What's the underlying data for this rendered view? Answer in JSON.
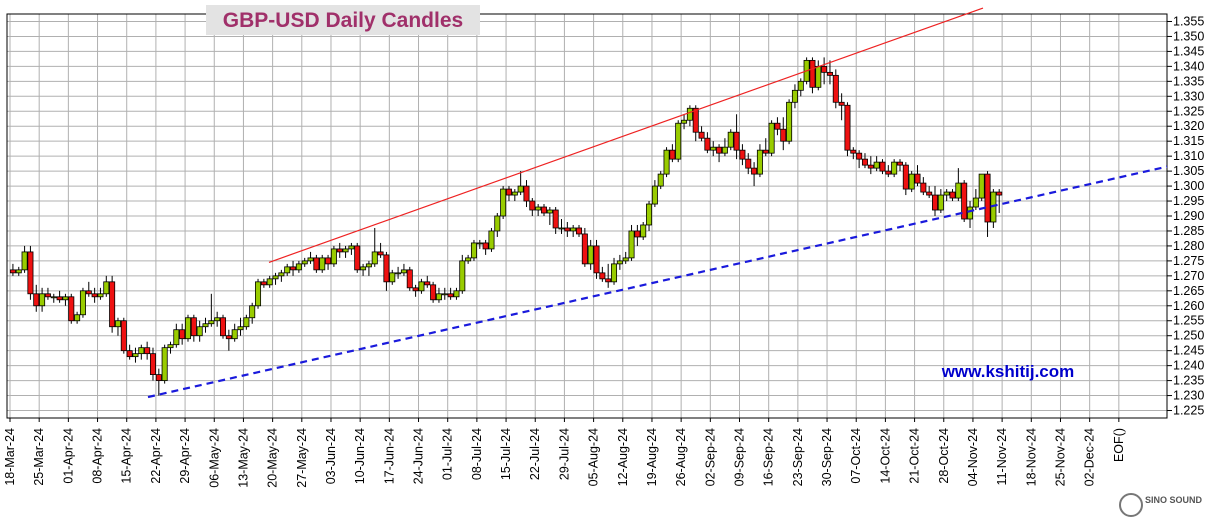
{
  "chart_data": {
    "type": "candlestick",
    "title": "GBP-USD Daily Candles",
    "watermark": "www.kshitij.com",
    "logo": "SINO SOUND",
    "y_ticks": [
      "1.355",
      "1.350",
      "1.345",
      "1.340",
      "1.335",
      "1.330",
      "1.325",
      "1.320",
      "1.315",
      "1.310",
      "1.305",
      "1.300",
      "1.295",
      "1.290",
      "1.285",
      "1.280",
      "1.275",
      "1.270",
      "1.265",
      "1.260",
      "1.255",
      "1.250",
      "1.245",
      "1.240",
      "1.235",
      "1.230",
      "1.225"
    ],
    "ylim": [
      1.2225,
      1.3575
    ],
    "x_ticks": [
      "18-Mar-24",
      "25-Mar-24",
      "01-Apr-24",
      "08-Apr-24",
      "15-Apr-24",
      "22-Apr-24",
      "29-Apr-24",
      "06-May-24",
      "13-May-24",
      "20-May-24",
      "27-May-24",
      "03-Jun-24",
      "10-Jun-24",
      "17-Jun-24",
      "24-Jun-24",
      "01-Jul-24",
      "08-Jul-24",
      "15-Jul-24",
      "22-Jul-24",
      "29-Jul-24",
      "05-Aug-24",
      "12-Aug-24",
      "19-Aug-24",
      "26-Aug-24",
      "02-Sep-24",
      "09-Sep-24",
      "16-Sep-24",
      "23-Sep-24",
      "30-Sep-24",
      "07-Oct-24",
      "14-Oct-24",
      "21-Oct-24",
      "28-Oct-24",
      "04-Nov-24",
      "11-Nov-24",
      "18-Nov-24",
      "25-Nov-24",
      "02-Dec-24",
      "EOF()"
    ],
    "colors": {
      "up": "#99cc00",
      "down": "#ee1111",
      "resistance": "#ee2222",
      "support": "#1a1adc",
      "grid": "#b0b0b0"
    },
    "trendlines": [
      {
        "style": "solid",
        "from": [
          "20-May-24",
          1.2745
        ],
        "to": [
          "27-Sep-24 (approx)",
          1.3595
        ]
      },
      {
        "style": "dashed",
        "from": [
          "17-Apr-24",
          1.2295
        ],
        "to": [
          "EOF()",
          1.3065
        ]
      }
    ],
    "candles": [
      [
        "18-Mar-24",
        1.272,
        1.274,
        1.27,
        1.271
      ],
      [
        "19-Mar-24",
        1.271,
        1.273,
        1.27,
        1.272
      ],
      [
        "20-Mar-24",
        1.272,
        1.28,
        1.271,
        1.278
      ],
      [
        "21-Mar-24",
        1.278,
        1.28,
        1.262,
        1.264
      ],
      [
        "22-Mar-24",
        1.264,
        1.267,
        1.258,
        1.26
      ],
      [
        "25-Mar-24",
        1.26,
        1.266,
        1.258,
        1.264
      ],
      [
        "26-Mar-24",
        1.264,
        1.266,
        1.262,
        1.263
      ],
      [
        "27-Mar-24",
        1.263,
        1.264,
        1.261,
        1.263
      ],
      [
        "28-Mar-24",
        1.263,
        1.265,
        1.261,
        1.262
      ],
      [
        "29-Mar-24",
        1.262,
        1.264,
        1.26,
        1.263
      ],
      [
        "01-Apr-24",
        1.263,
        1.264,
        1.254,
        1.255
      ],
      [
        "02-Apr-24",
        1.255,
        1.258,
        1.254,
        1.257
      ],
      [
        "03-Apr-24",
        1.257,
        1.266,
        1.256,
        1.265
      ],
      [
        "04-Apr-24",
        1.265,
        1.268,
        1.263,
        1.264
      ],
      [
        "05-Apr-24",
        1.264,
        1.266,
        1.261,
        1.263
      ],
      [
        "08-Apr-24",
        1.263,
        1.266,
        1.262,
        1.264
      ],
      [
        "09-Apr-24",
        1.264,
        1.27,
        1.263,
        1.268
      ],
      [
        "10-Apr-24",
        1.268,
        1.27,
        1.251,
        1.253
      ],
      [
        "11-Apr-24",
        1.253,
        1.256,
        1.25,
        1.255
      ],
      [
        "12-Apr-24",
        1.255,
        1.256,
        1.244,
        1.245
      ],
      [
        "15-Apr-24",
        1.245,
        1.247,
        1.242,
        1.243
      ],
      [
        "16-Apr-24",
        1.243,
        1.246,
        1.241,
        1.244
      ],
      [
        "17-Apr-24",
        1.244,
        1.247,
        1.242,
        1.246
      ],
      [
        "18-Apr-24",
        1.246,
        1.248,
        1.242,
        1.244
      ],
      [
        "19-Apr-24",
        1.244,
        1.246,
        1.235,
        1.237
      ],
      [
        "22-Apr-24",
        1.237,
        1.239,
        1.23,
        1.235
      ],
      [
        "23-Apr-24",
        1.235,
        1.247,
        1.234,
        1.246
      ],
      [
        "24-Apr-24",
        1.246,
        1.248,
        1.244,
        1.247
      ],
      [
        "25-Apr-24",
        1.247,
        1.254,
        1.246,
        1.252
      ],
      [
        "26-Apr-24",
        1.252,
        1.254,
        1.247,
        1.249
      ],
      [
        "29-Apr-24",
        1.249,
        1.257,
        1.248,
        1.256
      ],
      [
        "30-Apr-24",
        1.256,
        1.257,
        1.248,
        1.25
      ],
      [
        "01-May-24",
        1.25,
        1.255,
        1.248,
        1.253
      ],
      [
        "02-May-24",
        1.253,
        1.256,
        1.251,
        1.254
      ],
      [
        "03-May-24",
        1.254,
        1.264,
        1.253,
        1.255
      ],
      [
        "06-May-24",
        1.255,
        1.258,
        1.253,
        1.256
      ],
      [
        "07-May-24",
        1.256,
        1.257,
        1.249,
        1.25
      ],
      [
        "08-May-24",
        1.25,
        1.252,
        1.245,
        1.249
      ],
      [
        "09-May-24",
        1.249,
        1.254,
        1.248,
        1.252
      ],
      [
        "10-May-24",
        1.252,
        1.256,
        1.25,
        1.253
      ],
      [
        "13-May-24",
        1.253,
        1.257,
        1.252,
        1.256
      ],
      [
        "14-May-24",
        1.256,
        1.261,
        1.254,
        1.26
      ],
      [
        "15-May-24",
        1.26,
        1.269,
        1.259,
        1.268
      ],
      [
        "16-May-24",
        1.268,
        1.269,
        1.266,
        1.267
      ],
      [
        "17-May-24",
        1.267,
        1.27,
        1.266,
        1.269
      ],
      [
        "20-May-24",
        1.269,
        1.271,
        1.267,
        1.27
      ],
      [
        "21-May-24",
        1.27,
        1.272,
        1.268,
        1.271
      ],
      [
        "22-May-24",
        1.271,
        1.274,
        1.27,
        1.273
      ],
      [
        "23-May-24",
        1.273,
        1.275,
        1.27,
        1.272
      ],
      [
        "24-May-24",
        1.272,
        1.275,
        1.271,
        1.274
      ],
      [
        "27-May-24",
        1.274,
        1.276,
        1.273,
        1.275
      ],
      [
        "28-May-24",
        1.275,
        1.278,
        1.274,
        1.276
      ],
      [
        "29-May-24",
        1.276,
        1.277,
        1.271,
        1.272
      ],
      [
        "30-May-24",
        1.272,
        1.277,
        1.271,
        1.276
      ],
      [
        "31-May-24",
        1.276,
        1.277,
        1.272,
        1.274
      ],
      [
        "03-Jun-24",
        1.274,
        1.28,
        1.273,
        1.279
      ],
      [
        "04-Jun-24",
        1.279,
        1.281,
        1.276,
        1.278
      ],
      [
        "05-Jun-24",
        1.278,
        1.28,
        1.276,
        1.279
      ],
      [
        "06-Jun-24",
        1.279,
        1.281,
        1.277,
        1.28
      ],
      [
        "07-Jun-24",
        1.28,
        1.281,
        1.271,
        1.272
      ],
      [
        "10-Jun-24",
        1.272,
        1.274,
        1.27,
        1.273
      ],
      [
        "11-Jun-24",
        1.273,
        1.275,
        1.27,
        1.274
      ],
      [
        "12-Jun-24",
        1.274,
        1.286,
        1.273,
        1.278
      ],
      [
        "13-Jun-24",
        1.278,
        1.281,
        1.276,
        1.277
      ],
      [
        "14-Jun-24",
        1.277,
        1.278,
        1.265,
        1.268
      ],
      [
        "17-Jun-24",
        1.268,
        1.272,
        1.267,
        1.271
      ],
      [
        "18-Jun-24",
        1.271,
        1.273,
        1.269,
        1.271
      ],
      [
        "19-Jun-24",
        1.271,
        1.274,
        1.27,
        1.272
      ],
      [
        "20-Jun-24",
        1.272,
        1.273,
        1.265,
        1.266
      ],
      [
        "21-Jun-24",
        1.266,
        1.267,
        1.263,
        1.265
      ],
      [
        "24-Jun-24",
        1.265,
        1.269,
        1.264,
        1.268
      ],
      [
        "25-Jun-24",
        1.268,
        1.27,
        1.266,
        1.267
      ],
      [
        "26-Jun-24",
        1.267,
        1.268,
        1.261,
        1.262
      ],
      [
        "27-Jun-24",
        1.262,
        1.266,
        1.261,
        1.264
      ],
      [
        "28-Jun-24",
        1.264,
        1.266,
        1.262,
        1.264
      ],
      [
        "01-Jul-24",
        1.264,
        1.266,
        1.262,
        1.263
      ],
      [
        "02-Jul-24",
        1.263,
        1.266,
        1.262,
        1.265
      ],
      [
        "03-Jul-24",
        1.265,
        1.277,
        1.264,
        1.275
      ],
      [
        "04-Jul-24",
        1.275,
        1.277,
        1.274,
        1.276
      ],
      [
        "05-Jul-24",
        1.276,
        1.282,
        1.275,
        1.281
      ],
      [
        "08-Jul-24",
        1.281,
        1.282,
        1.279,
        1.281
      ],
      [
        "09-Jul-24",
        1.281,
        1.282,
        1.277,
        1.279
      ],
      [
        "10-Jul-24",
        1.279,
        1.286,
        1.278,
        1.285
      ],
      [
        "11-Jul-24",
        1.285,
        1.291,
        1.283,
        1.29
      ],
      [
        "12-Jul-24",
        1.29,
        1.3,
        1.289,
        1.299
      ],
      [
        "15-Jul-24",
        1.299,
        1.3,
        1.295,
        1.297
      ],
      [
        "16-Jul-24",
        1.297,
        1.299,
        1.295,
        1.298
      ],
      [
        "17-Jul-24",
        1.298,
        1.305,
        1.297,
        1.3
      ],
      [
        "18-Jul-24",
        1.3,
        1.302,
        1.293,
        1.295
      ],
      [
        "19-Jul-24",
        1.295,
        1.296,
        1.29,
        1.292
      ],
      [
        "22-Jul-24",
        1.292,
        1.294,
        1.29,
        1.293
      ],
      [
        "23-Jul-24",
        1.293,
        1.294,
        1.29,
        1.291
      ],
      [
        "24-Jul-24",
        1.291,
        1.293,
        1.287,
        1.292
      ],
      [
        "25-Jul-24",
        1.292,
        1.293,
        1.284,
        1.286
      ],
      [
        "26-Jul-24",
        1.286,
        1.289,
        1.284,
        1.286
      ],
      [
        "29-Jul-24",
        1.286,
        1.288,
        1.283,
        1.285
      ],
      [
        "30-Jul-24",
        1.285,
        1.287,
        1.283,
        1.286
      ],
      [
        "31-Jul-24",
        1.286,
        1.287,
        1.283,
        1.284
      ],
      [
        "01-Aug-24",
        1.284,
        1.286,
        1.273,
        1.274
      ],
      [
        "02-Aug-24",
        1.274,
        1.282,
        1.272,
        1.28
      ],
      [
        "05-Aug-24",
        1.28,
        1.282,
        1.269,
        1.271
      ],
      [
        "06-Aug-24",
        1.271,
        1.273,
        1.268,
        1.269
      ],
      [
        "07-Aug-24",
        1.269,
        1.274,
        1.266,
        1.268
      ],
      [
        "08-Aug-24",
        1.268,
        1.276,
        1.267,
        1.274
      ],
      [
        "09-Aug-24",
        1.274,
        1.277,
        1.272,
        1.275
      ],
      [
        "12-Aug-24",
        1.275,
        1.278,
        1.274,
        1.276
      ],
      [
        "13-Aug-24",
        1.276,
        1.287,
        1.275,
        1.285
      ],
      [
        "14-Aug-24",
        1.285,
        1.287,
        1.28,
        1.283
      ],
      [
        "15-Aug-24",
        1.283,
        1.288,
        1.282,
        1.287
      ],
      [
        "16-Aug-24",
        1.287,
        1.295,
        1.285,
        1.294
      ],
      [
        "19-Aug-24",
        1.294,
        1.302,
        1.293,
        1.3
      ],
      [
        "20-Aug-24",
        1.3,
        1.305,
        1.299,
        1.304
      ],
      [
        "21-Aug-24",
        1.304,
        1.313,
        1.303,
        1.312
      ],
      [
        "22-Aug-24",
        1.312,
        1.314,
        1.308,
        1.309
      ],
      [
        "23-Aug-24",
        1.309,
        1.322,
        1.308,
        1.321
      ],
      [
        "26-Aug-24",
        1.321,
        1.324,
        1.319,
        1.322
      ],
      [
        "27-Aug-24",
        1.322,
        1.327,
        1.32,
        1.326
      ],
      [
        "28-Aug-24",
        1.326,
        1.327,
        1.315,
        1.318
      ],
      [
        "29-Aug-24",
        1.318,
        1.32,
        1.315,
        1.316
      ],
      [
        "30-Aug-24",
        1.316,
        1.318,
        1.311,
        1.312
      ],
      [
        "02-Sep-24",
        1.312,
        1.315,
        1.31,
        1.313
      ],
      [
        "03-Sep-24",
        1.313,
        1.314,
        1.308,
        1.311
      ],
      [
        "04-Sep-24",
        1.311,
        1.316,
        1.31,
        1.313
      ],
      [
        "05-Sep-24",
        1.313,
        1.319,
        1.312,
        1.318
      ],
      [
        "06-Sep-24",
        1.318,
        1.324,
        1.309,
        1.312
      ],
      [
        "09-Sep-24",
        1.312,
        1.314,
        1.307,
        1.309
      ],
      [
        "10-Sep-24",
        1.309,
        1.311,
        1.304,
        1.306
      ],
      [
        "11-Sep-24",
        1.306,
        1.308,
        1.3,
        1.304
      ],
      [
        "12-Sep-24",
        1.304,
        1.314,
        1.303,
        1.312
      ],
      [
        "13-Sep-24",
        1.312,
        1.316,
        1.31,
        1.311
      ],
      [
        "16-Sep-24",
        1.311,
        1.322,
        1.31,
        1.321
      ],
      [
        "17-Sep-24",
        1.321,
        1.323,
        1.317,
        1.319
      ],
      [
        "18-Sep-24",
        1.319,
        1.323,
        1.312,
        1.315
      ],
      [
        "19-Sep-24",
        1.315,
        1.329,
        1.314,
        1.328
      ],
      [
        "20-Sep-24",
        1.328,
        1.334,
        1.326,
        1.332
      ],
      [
        "23-Sep-24",
        1.332,
        1.336,
        1.33,
        1.335
      ],
      [
        "24-Sep-24",
        1.335,
        1.343,
        1.334,
        1.342
      ],
      [
        "25-Sep-24",
        1.342,
        1.343,
        1.331,
        1.333
      ],
      [
        "26-Sep-24",
        1.333,
        1.342,
        1.332,
        1.34
      ],
      [
        "27-Sep-24",
        1.34,
        1.343,
        1.334,
        1.338
      ],
      [
        "30-Sep-24",
        1.338,
        1.342,
        1.334,
        1.337
      ],
      [
        "01-Oct-24",
        1.337,
        1.339,
        1.326,
        1.328
      ],
      [
        "02-Oct-24",
        1.328,
        1.331,
        1.322,
        1.327
      ],
      [
        "03-Oct-24",
        1.327,
        1.328,
        1.31,
        1.312
      ],
      [
        "04-Oct-24",
        1.312,
        1.313,
        1.309,
        1.311
      ],
      [
        "07-Oct-24",
        1.311,
        1.312,
        1.306,
        1.309
      ],
      [
        "08-Oct-24",
        1.309,
        1.311,
        1.306,
        1.307
      ],
      [
        "09-Oct-24",
        1.307,
        1.31,
        1.304,
        1.306
      ],
      [
        "10-Oct-24",
        1.306,
        1.31,
        1.305,
        1.308
      ],
      [
        "11-Oct-24",
        1.308,
        1.309,
        1.304,
        1.305
      ],
      [
        "14-Oct-24",
        1.305,
        1.307,
        1.303,
        1.304
      ],
      [
        "15-Oct-24",
        1.304,
        1.309,
        1.303,
        1.308
      ],
      [
        "16-Oct-24",
        1.308,
        1.309,
        1.305,
        1.307
      ],
      [
        "17-Oct-24",
        1.307,
        1.308,
        1.297,
        1.299
      ],
      [
        "18-Oct-24",
        1.299,
        1.305,
        1.298,
        1.304
      ],
      [
        "21-Oct-24",
        1.304,
        1.307,
        1.3,
        1.301
      ],
      [
        "22-Oct-24",
        1.301,
        1.303,
        1.297,
        1.298
      ],
      [
        "23-Oct-24",
        1.298,
        1.3,
        1.296,
        1.297
      ],
      [
        "24-Oct-24",
        1.297,
        1.3,
        1.29,
        1.292
      ],
      [
        "25-Oct-24",
        1.292,
        1.299,
        1.291,
        1.297
      ],
      [
        "28-Oct-24",
        1.297,
        1.299,
        1.295,
        1.298
      ],
      [
        "29-Oct-24",
        1.298,
        1.299,
        1.295,
        1.296
      ],
      [
        "30-Oct-24",
        1.296,
        1.306,
        1.295,
        1.301
      ],
      [
        "31-Oct-24",
        1.301,
        1.302,
        1.288,
        1.289
      ],
      [
        "01-Nov-24",
        1.289,
        1.295,
        1.286,
        1.293
      ],
      [
        "04-Nov-24",
        1.293,
        1.299,
        1.292,
        1.296
      ],
      [
        "05-Nov-24",
        1.296,
        1.304,
        1.295,
        1.304
      ],
      [
        "06-Nov-24",
        1.304,
        1.305,
        1.283,
        1.288
      ],
      [
        "07-Nov-24",
        1.288,
        1.299,
        1.286,
        1.298
      ],
      [
        "08-Nov-24",
        1.298,
        1.299,
        1.291,
        1.297
      ]
    ]
  }
}
